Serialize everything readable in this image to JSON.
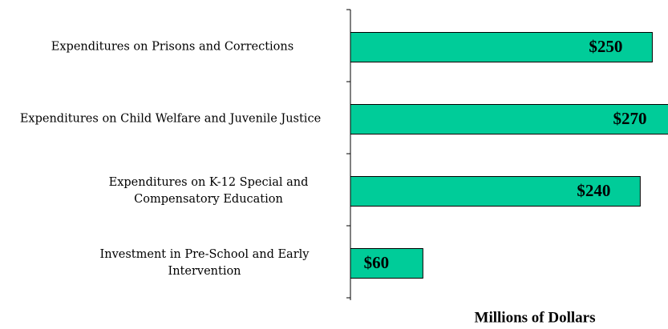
{
  "chart_data": {
    "type": "barh",
    "categories": [
      "Expenditures on Prisons and Corrections",
      "Expenditures on Child Welfare and Juvenile Justice",
      "Expenditures on K-12 Special and Compensatory Education",
      "Investment in Pre-School and Early Intervention"
    ],
    "values": [
      250,
      270,
      240,
      60
    ],
    "value_labels": [
      "$250",
      "$270",
      "$240",
      "$60"
    ],
    "color": "#00cc99",
    "xlim": [
      0,
      263
    ],
    "x_label": "Millions of Dollars"
  }
}
